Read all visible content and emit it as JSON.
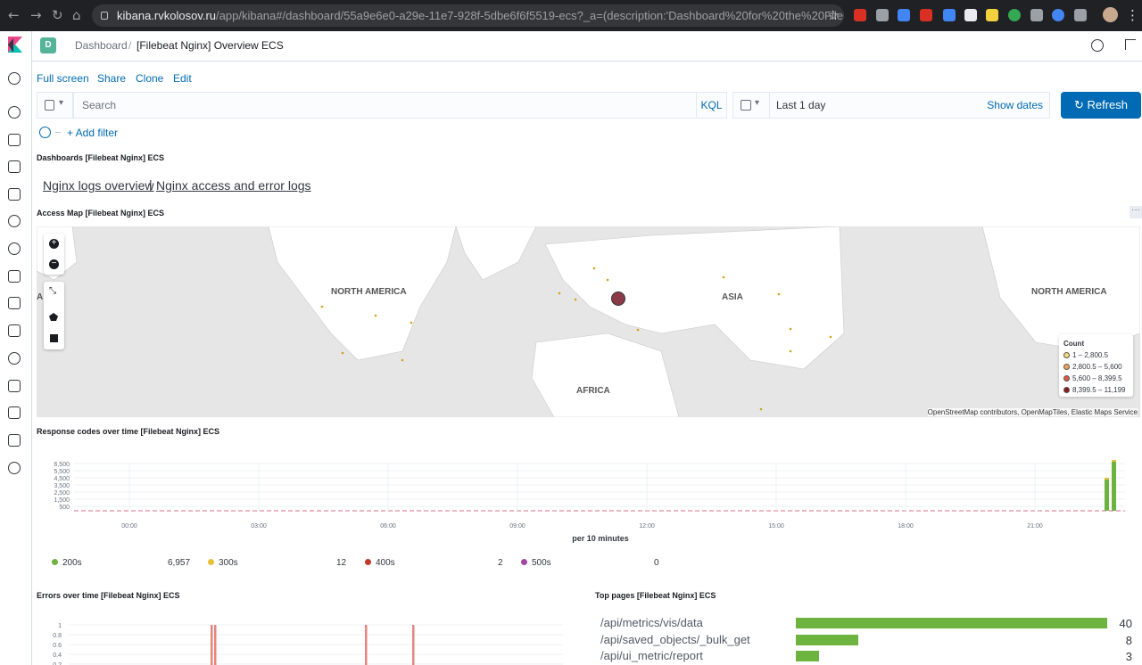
{
  "browser": {
    "url_host": "kibana.rvkolosov.ru",
    "url_path": "/app/kibana#/dashboard/55a9e6e0-a29e-11e7-928f-5dbe6f6f5519-ecs?_a=(description:'Dashboard%20for%20the%20Filebeat%20N..."
  },
  "header": {
    "app_badge": "D",
    "breadcrumb_root": "Dashboard",
    "breadcrumb_current": "[Filebeat Nginx] Overview ECS"
  },
  "menu": {
    "full_screen": "Full screen",
    "share": "Share",
    "clone": "Clone",
    "edit": "Edit"
  },
  "query": {
    "search_placeholder": "Search",
    "language": "KQL",
    "time_range": "Last 1 day",
    "show_dates": "Show dates",
    "refresh": "Refresh",
    "add_filter": "+ Add filter"
  },
  "panels": {
    "dashboards_title": "Dashboards [Filebeat Nginx] ECS",
    "link_overview": "Nginx logs overview",
    "link_sep": "|",
    "link_access": "Nginx access and error logs",
    "access_map_title": "Access Map [Filebeat Nginx] ECS",
    "map_labels": {
      "north_america_1": "NORTH AMERICA",
      "asia": "ASIA",
      "africa": "AFRICA",
      "north_america_2": "NORTH AMERICA",
      "a_partial": "A"
    },
    "legend_title": "Count",
    "legend_items": [
      {
        "label": "1 – 2,800.5",
        "color": "#fcd77a"
      },
      {
        "label": "2,800.5 – 5,600",
        "color": "#f4a25b"
      },
      {
        "label": "5,600 – 8,399.5",
        "color": "#e0553c"
      },
      {
        "label": "8,399.5 – 11,199",
        "color": "#8b1a1a"
      }
    ],
    "attribution": "OpenStreetMap contributors, OpenMapTiles, Elastic Maps Service",
    "response_title": "Response codes over time [Filebeat Nginx] ECS",
    "errors_title": "Errors over time [Filebeat Nginx] ECS",
    "top_pages_title": "Top pages [Filebeat Nginx] ECS"
  },
  "chart_data": [
    {
      "type": "bar",
      "title": "Response codes over time [Filebeat Nginx] ECS",
      "xlabel": "per 10 minutes",
      "x_ticks": [
        "00:00",
        "03:00",
        "06:00",
        "09:00",
        "12:00",
        "15:00",
        "18:00",
        "21:00"
      ],
      "y_ticks": [
        "6,500",
        "5,500",
        "4,500",
        "3,500",
        "2,500",
        "1,500",
        "500"
      ],
      "series": [
        {
          "name": "200s",
          "total": "6,957",
          "color": "#6db33f"
        },
        {
          "name": "300s",
          "total": "12",
          "color": "#e7c034"
        },
        {
          "name": "400s",
          "total": "2",
          "color": "#c0392b"
        },
        {
          "name": "500s",
          "total": "0",
          "color": "#a347a3"
        }
      ]
    },
    {
      "type": "bar",
      "title": "Errors over time [Filebeat Nginx] ECS",
      "y_ticks": [
        "1",
        "0.8",
        "0.6",
        "0.4",
        "0.2"
      ]
    },
    {
      "type": "bar",
      "title": "Top pages [Filebeat Nginx] ECS",
      "categories": [
        "/api/metrics/vis/data",
        "/api/saved_objects/_bulk_get",
        "/api/ui_metric/report"
      ],
      "values": [
        40,
        8,
        3
      ],
      "color": "#6db33f"
    }
  ]
}
